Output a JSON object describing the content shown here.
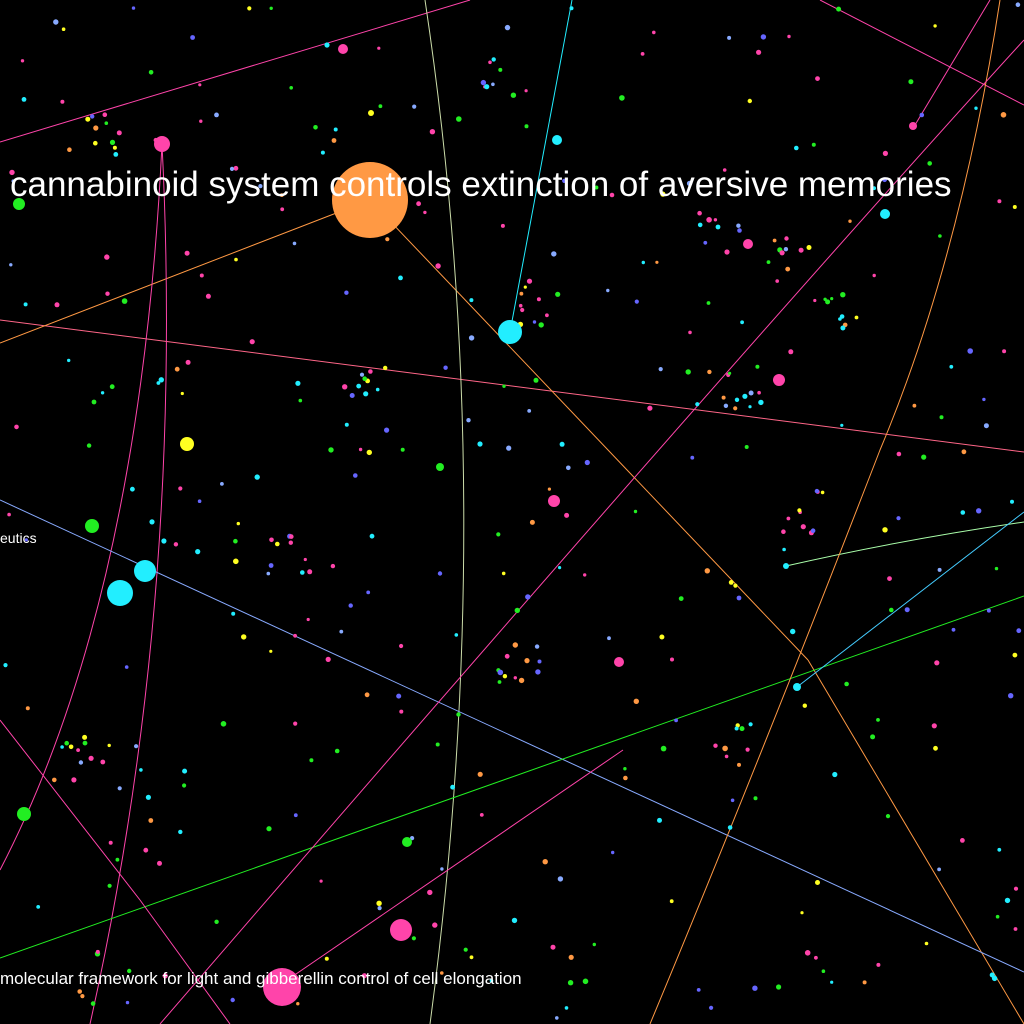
{
  "background": "#000000",
  "palette": {
    "pink": "#ff44aa",
    "orange": "#ff9944",
    "cyan": "#22eeff",
    "green": "#22ee22",
    "yellow": "#ffff22",
    "blue": "#6666ff",
    "lightblue": "#88aaff"
  },
  "labels": {
    "headline": "cannabinoid system controls extinction of aversive memories",
    "side": "eutics",
    "bottom": "molecular framework for light and gibberellin control of cell elongation"
  }
}
